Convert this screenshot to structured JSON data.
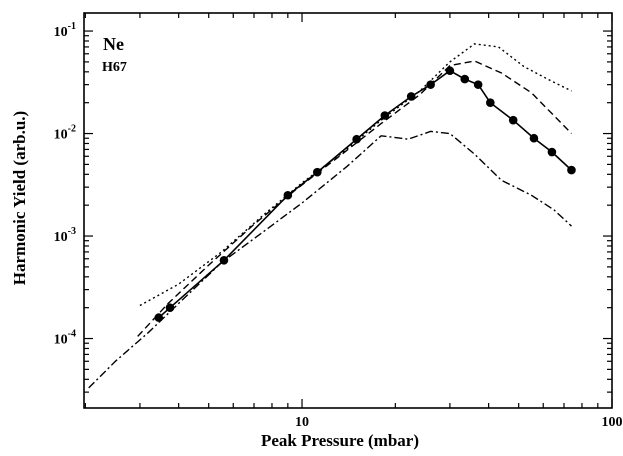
{
  "chart_data": {
    "type": "line",
    "title": "",
    "xlabel": "Peak Pressure (mbar)",
    "ylabel": "Harmonic Yield (arb.u.)",
    "xscale": "log",
    "yscale": "log",
    "xlim": [
      1.98,
      100
    ],
    "ylim": [
      2.1e-05,
      0.15
    ],
    "x_ticks": [
      10,
      100
    ],
    "x_tick_labels": [
      "10",
      "100"
    ],
    "y_ticks": [
      0.0001,
      0.001,
      0.01,
      0.1
    ],
    "y_tick_labels": [
      {
        "base": "10",
        "exp": "-4"
      },
      {
        "base": "10",
        "exp": "-3"
      },
      {
        "base": "10",
        "exp": "-2"
      },
      {
        "base": "10",
        "exp": "-1"
      }
    ],
    "grid": false,
    "annotations": [
      "Ne",
      "H67"
    ],
    "series": [
      {
        "style": "solid-markers",
        "x": [
          3.45,
          3.75,
          5.6,
          9.0,
          11.2,
          15.0,
          18.5,
          22.5,
          26.0,
          30.0,
          33.5,
          37.0,
          40.5,
          48.0,
          56.0,
          64.0,
          74.0
        ],
        "y": [
          0.00016,
          0.0002,
          0.00058,
          0.0025,
          0.0042,
          0.0088,
          0.015,
          0.023,
          0.03,
          0.041,
          0.034,
          0.03,
          0.02,
          0.0135,
          0.009,
          0.0066,
          0.0044
        ]
      },
      {
        "style": "dotted",
        "x": [
          3.0,
          4.0,
          5.5,
          7.5,
          10.0,
          13.5,
          18.0,
          24.0,
          30.0,
          36.0,
          43.0,
          52.0,
          62.0,
          74.0
        ],
        "y": [
          0.00021,
          0.00034,
          0.0007,
          0.0016,
          0.0033,
          0.0065,
          0.0135,
          0.026,
          0.05,
          0.075,
          0.07,
          0.045,
          0.034,
          0.026
        ]
      },
      {
        "style": "dashed",
        "x": [
          2.95,
          3.7,
          5.0,
          7.0,
          9.5,
          13.0,
          18.0,
          24.0,
          30.0,
          36.0,
          44.0,
          55.0,
          74.0
        ],
        "y": [
          0.000105,
          0.00022,
          0.00052,
          0.0013,
          0.0028,
          0.0058,
          0.0125,
          0.024,
          0.046,
          0.051,
          0.039,
          0.025,
          0.01
        ]
      },
      {
        "style": "dash-dot",
        "x": [
          2.05,
          2.5,
          3.2,
          4.0,
          5.5,
          7.5,
          10.0,
          14.0,
          18.0,
          22.0,
          26.0,
          30.0,
          36.0,
          44.0,
          55.0,
          65.0,
          74.0
        ],
        "y": [
          3.3e-05,
          6e-05,
          0.000115,
          0.00022,
          0.00055,
          0.0011,
          0.0021,
          0.0048,
          0.0095,
          0.0088,
          0.0105,
          0.01,
          0.0063,
          0.0035,
          0.0025,
          0.0018,
          0.00125
        ]
      }
    ]
  }
}
